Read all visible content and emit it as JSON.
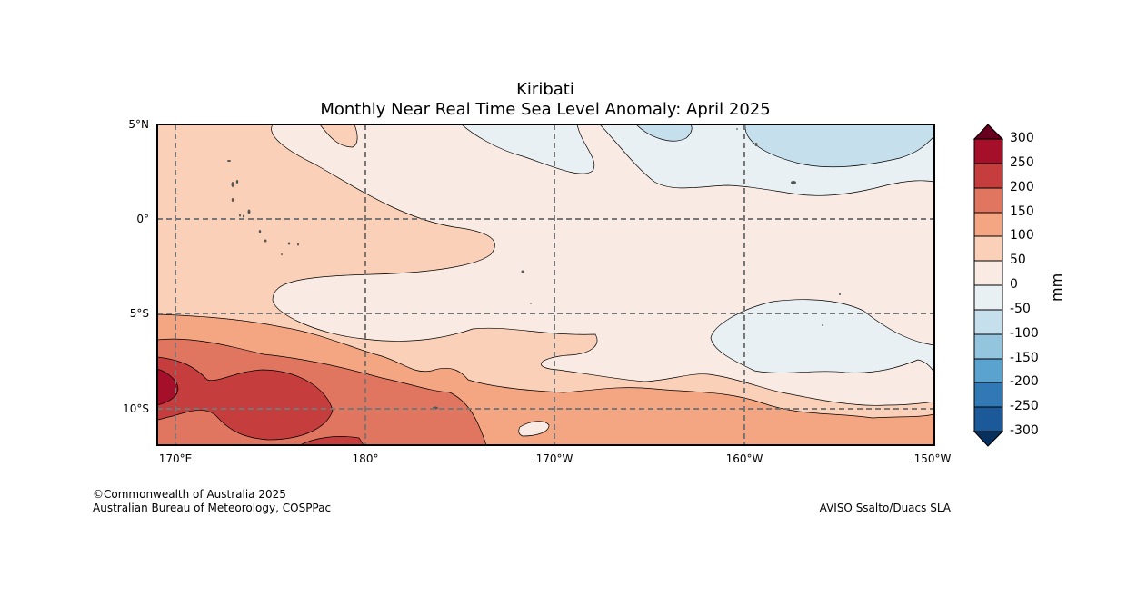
{
  "title": "Kiribati",
  "subtitle": "Monthly Near Real Time Sea Level Anomaly: April 2025",
  "lat_ticks": [
    {
      "label": "5°N",
      "lat": 5
    },
    {
      "label": "0°",
      "lat": 0
    },
    {
      "label": "5°S",
      "lat": -5
    },
    {
      "label": "10°S",
      "lat": -10
    }
  ],
  "lon_ticks": [
    {
      "label": "170°E",
      "lon": 170
    },
    {
      "label": "180°",
      "lon": 180
    },
    {
      "label": "170°W",
      "lon": 190
    },
    {
      "label": "160°W",
      "lon": 200
    },
    {
      "label": "150°W",
      "lon": 210
    }
  ],
  "extent": {
    "lon_min": 169,
    "lon_max": 210,
    "lat_min": -12,
    "lat_max": 5
  },
  "colorbar": {
    "unit": "mm",
    "levels": [
      "300",
      "250",
      "200",
      "150",
      "100",
      "50",
      "0",
      "-50",
      "-100",
      "-150",
      "-200",
      "-250",
      "-300"
    ],
    "colors": {
      "gt_300": "#67001f",
      "250_300": "#a50f29",
      "200_250": "#c53e3d",
      "150_200": "#e07560",
      "100_150": "#f4a582",
      "50_100": "#fbd0b9",
      "0_50": "#f9ebe3",
      "m50_0": "#e8f0f4",
      "m100_m50": "#c6dfed",
      "m150_m100": "#94c5df",
      "m200_m150": "#5ba3cf",
      "m250_m200": "#3179b5",
      "m300_m250": "#1b5999",
      "lt_m300": "#08305e"
    }
  },
  "footer": {
    "copyright": "©Commonwealth of Australia 2025",
    "agency": "Australian Bureau of Meteorology, COSPPac",
    "source": "AVISO Ssalto/Duacs SLA"
  }
}
